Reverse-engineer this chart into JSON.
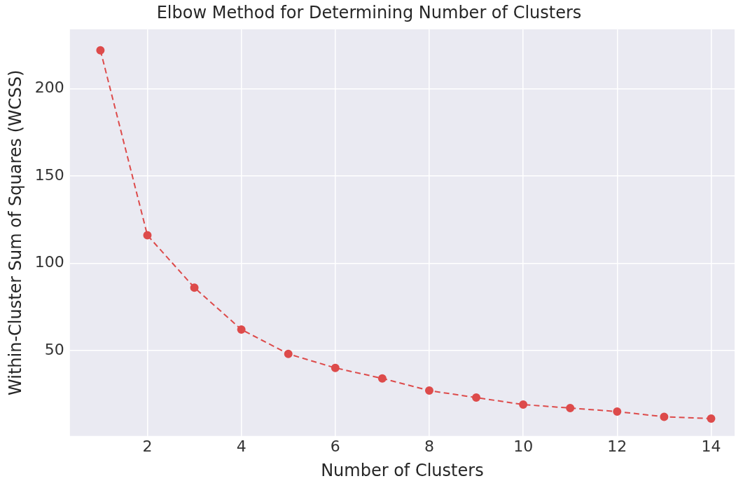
{
  "chart_data": {
    "type": "line",
    "title": "Elbow Method for Determining Number of Clusters",
    "xlabel": "Number of Clusters",
    "ylabel": "Within-Cluster Sum of Squares (WCSS)",
    "x": [
      1,
      2,
      3,
      4,
      5,
      6,
      7,
      8,
      9,
      10,
      11,
      12,
      13,
      14
    ],
    "series": [
      {
        "color": "#dd4b4b",
        "values": [
          222,
          116,
          86,
          62,
          48,
          40,
          34,
          27,
          23,
          19,
          17,
          15,
          12,
          11
        ]
      }
    ],
    "xlim": [
      0.35,
      14.5
    ],
    "xticks": [
      2,
      4,
      6,
      8,
      10,
      12,
      14
    ],
    "ylim": [
      1,
      234
    ],
    "yticks": [
      50,
      100,
      150,
      200
    ],
    "grid": true,
    "legend": false,
    "marker": "circle",
    "line_style": "dashed"
  }
}
